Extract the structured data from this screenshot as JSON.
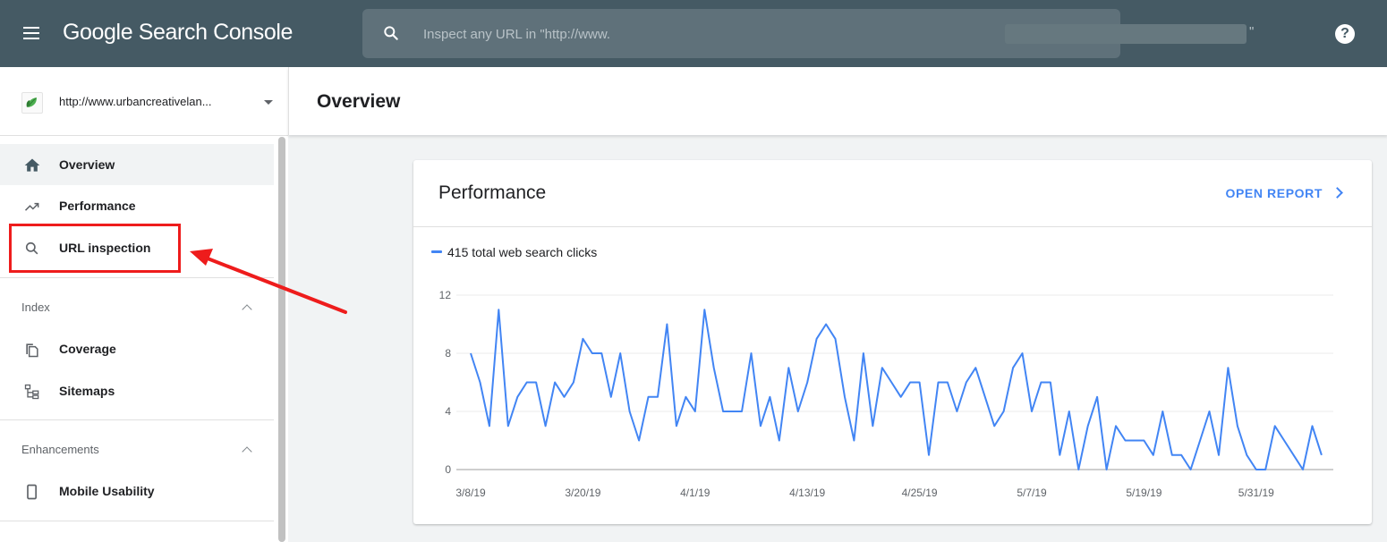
{
  "app": {
    "title": "Google Search Console",
    "search_placeholder": "Inspect any URL in \"http://www.",
    "search_placeholder_tail": "\"",
    "help_label": "?"
  },
  "property": {
    "url": "http://www.urbancreativelan..."
  },
  "sidebar": {
    "items": [
      {
        "label": "Overview",
        "icon": "home-icon",
        "active": true
      },
      {
        "label": "Performance",
        "icon": "trending-up-icon",
        "active": false
      },
      {
        "label": "URL inspection",
        "icon": "search-icon",
        "active": false
      }
    ],
    "sections": [
      {
        "title": "Index",
        "items": [
          {
            "label": "Coverage",
            "icon": "copy-icon"
          },
          {
            "label": "Sitemaps",
            "icon": "sitemap-icon"
          }
        ]
      },
      {
        "title": "Enhancements",
        "items": [
          {
            "label": "Mobile Usability",
            "icon": "phone-icon"
          }
        ]
      }
    ]
  },
  "main": {
    "page_title": "Overview",
    "card": {
      "title": "Performance",
      "open_report": "OPEN REPORT",
      "legend": "415 total web search clicks"
    }
  },
  "colors": {
    "topbar": "#455a64",
    "accent": "#4285f4",
    "annotation": "#ee1c1c"
  },
  "chart_data": {
    "type": "line",
    "ylim": [
      0,
      12
    ],
    "yticks": [
      0,
      4,
      8,
      12
    ],
    "xticks": [
      "3/8/19",
      "3/20/19",
      "4/1/19",
      "4/13/19",
      "4/25/19",
      "5/7/19",
      "5/19/19",
      "5/31/19"
    ],
    "start_date": "3/8/19",
    "grid": true,
    "series": [
      {
        "name": "415 total web search clicks",
        "values": [
          8,
          6,
          3,
          11,
          3,
          5,
          6,
          6,
          3,
          6,
          5,
          6,
          9,
          8,
          8,
          5,
          8,
          4,
          2,
          5,
          5,
          10,
          3,
          5,
          4,
          11,
          7,
          4,
          4,
          4,
          8,
          3,
          5,
          2,
          7,
          4,
          6,
          9,
          10,
          9,
          5,
          2,
          8,
          3,
          7,
          6,
          5,
          6,
          6,
          1,
          6,
          6,
          4,
          6,
          7,
          5,
          3,
          4,
          7,
          8,
          4,
          6,
          6,
          1,
          4,
          0,
          3,
          5,
          0,
          3,
          2,
          2,
          2,
          1,
          4,
          1,
          1,
          0,
          2,
          4,
          1,
          7,
          3,
          1,
          0,
          0,
          3,
          2,
          1,
          0,
          3,
          1
        ]
      }
    ]
  }
}
